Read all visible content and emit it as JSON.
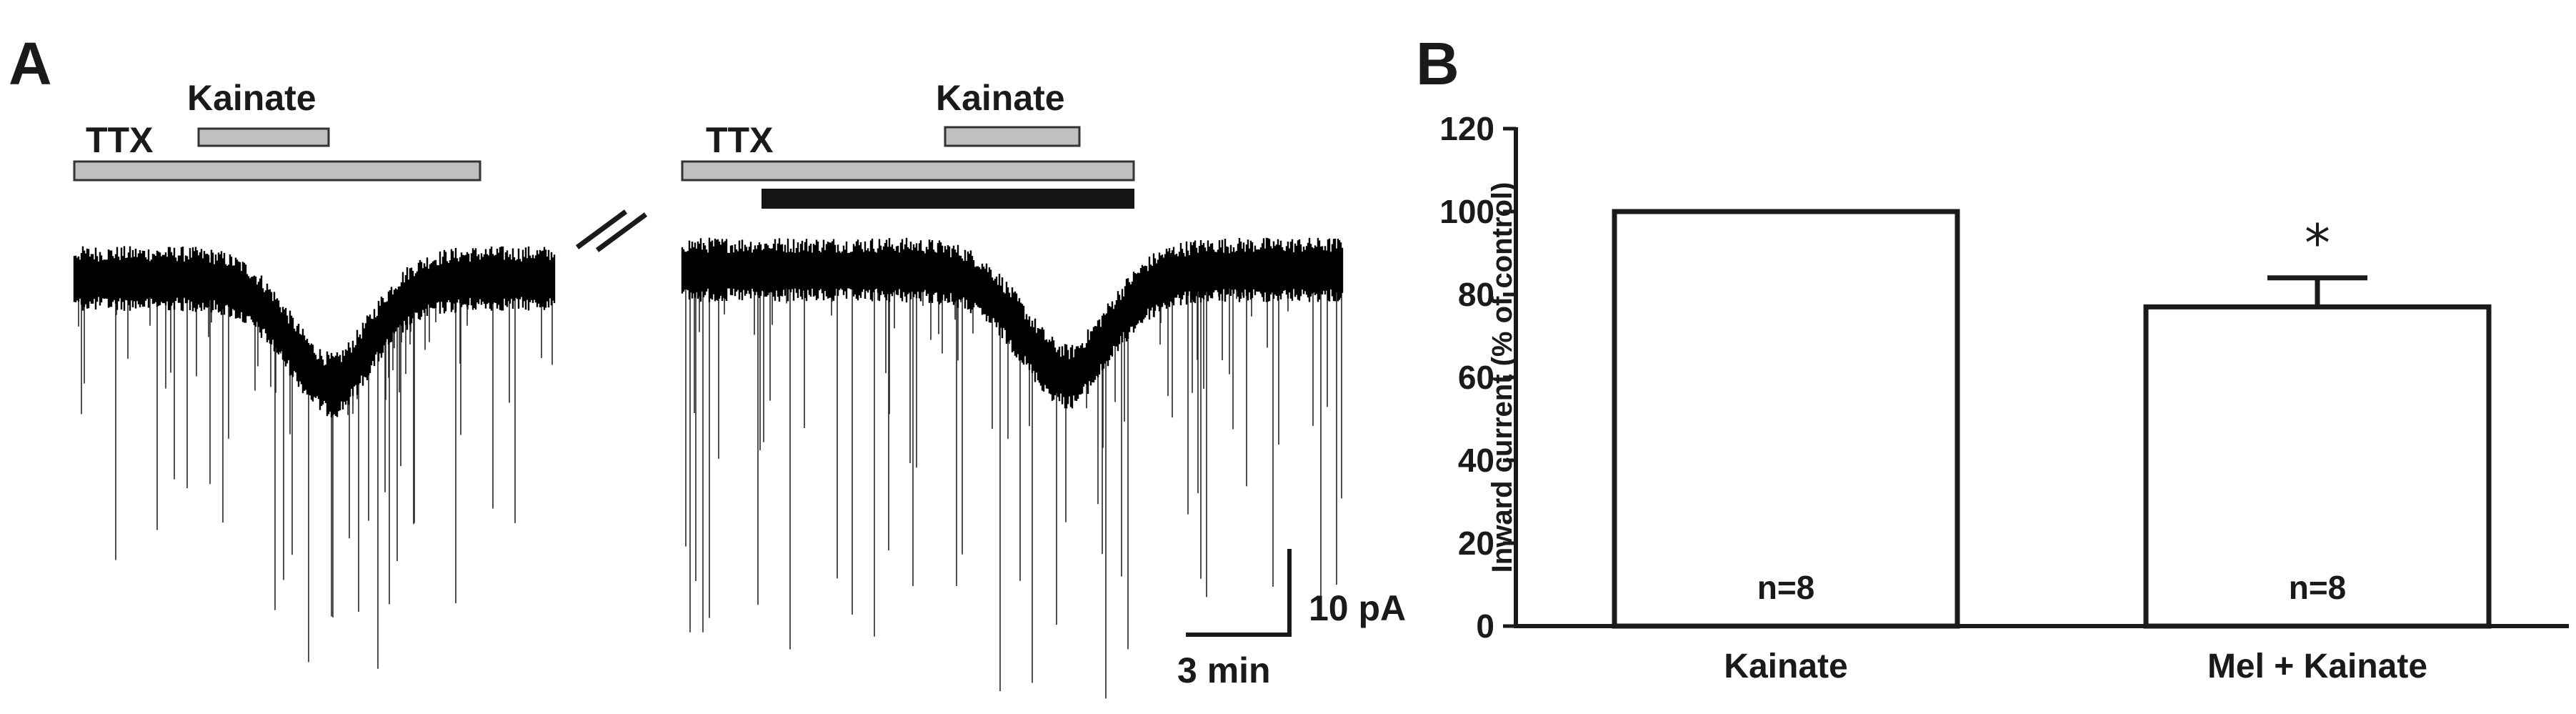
{
  "panels": {
    "a": {
      "letter": "A",
      "left_trace": {
        "ttx_label": "TTX",
        "kainate_label": "Kainate"
      },
      "right_trace": {
        "ttx_label": "TTX",
        "kainate_label": "Kainate"
      },
      "break_marker": "//",
      "scale_bar": {
        "current_label": "10 pA",
        "time_label": "3 min"
      }
    },
    "b": {
      "letter": "B"
    }
  },
  "colors": {
    "trace": "#000000",
    "drug_bar_fill": "#c0c0c0",
    "melatonin_bar_fill": "#151515",
    "bar_fill": "#ffffff",
    "axis": "#1a1a1a"
  },
  "chart_data": {
    "type": "bar",
    "categories": [
      "Kainate",
      "Mel + Kainate"
    ],
    "values": [
      100,
      77
    ],
    "errors": [
      0,
      7
    ],
    "n_labels": [
      "n=8",
      "n=8"
    ],
    "significance": [
      "",
      "*"
    ],
    "ylabel": "Inward current (% of control)",
    "ylim": [
      0,
      120
    ],
    "yticks": [
      0,
      20,
      40,
      60,
      80,
      100,
      120
    ],
    "xlabel": "",
    "title": "",
    "grid": false,
    "legend": "none"
  }
}
